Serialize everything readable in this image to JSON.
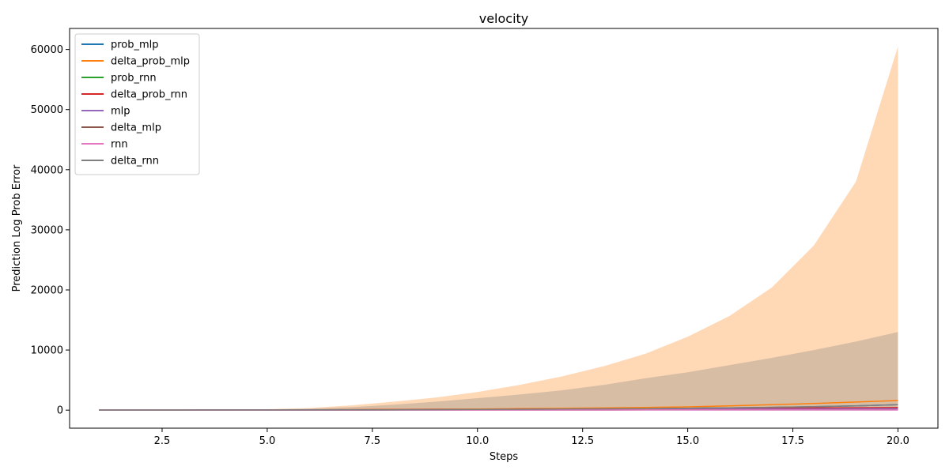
{
  "chart_data": {
    "type": "area",
    "title": "velocity",
    "xlabel": "Steps",
    "ylabel": "Prediction Log Prob Error",
    "xlim": [
      0.3,
      20.95
    ],
    "ylim": [
      -3000,
      63500
    ],
    "x_ticks": [
      2.5,
      5.0,
      7.5,
      10.0,
      12.5,
      15.0,
      17.5,
      20.0
    ],
    "x_tick_labels": [
      "2.5",
      "5.0",
      "7.5",
      "10.0",
      "12.5",
      "15.0",
      "17.5",
      "20.0"
    ],
    "y_ticks": [
      0,
      10000,
      20000,
      30000,
      40000,
      50000,
      60000
    ],
    "y_tick_labels": [
      "0",
      "10000",
      "20000",
      "30000",
      "40000",
      "50000",
      "60000"
    ],
    "grid": false,
    "legend_position": "top-left",
    "x": [
      1,
      2,
      3,
      4,
      5,
      6,
      7,
      8,
      9,
      10,
      11,
      12,
      13,
      14,
      15,
      16,
      17,
      18,
      19,
      20
    ],
    "series": [
      {
        "name": "prob_mlp",
        "color": "#1f77b4",
        "values": [
          5,
          8,
          12,
          18,
          25,
          35,
          48,
          65,
          85,
          110,
          140,
          175,
          215,
          265,
          320,
          390,
          470,
          570,
          700,
          900
        ]
      },
      {
        "name": "delta_prob_mlp",
        "color": "#ff7f0e",
        "values": [
          5,
          10,
          15,
          22,
          32,
          50,
          80,
          110,
          150,
          200,
          250,
          300,
          370,
          450,
          550,
          700,
          900,
          1100,
          1350,
          1600
        ],
        "band_upper": [
          80,
          90,
          100,
          120,
          150,
          350,
          800,
          1400,
          2100,
          3000,
          4200,
          5600,
          7300,
          9400,
          12200,
          15700,
          20400,
          27400,
          38000,
          60500
        ]
      },
      {
        "name": "prob_rnn",
        "color": "#2ca02c",
        "values": [
          5,
          8,
          12,
          16,
          22,
          30,
          40,
          50,
          60,
          70,
          80,
          90,
          100,
          110,
          120,
          130,
          140,
          150,
          160,
          170
        ]
      },
      {
        "name": "delta_prob_rnn",
        "color": "#d62728",
        "values": [
          5,
          10,
          15,
          20,
          30,
          50,
          70,
          90,
          110,
          130,
          160,
          190,
          220,
          250,
          280,
          310,
          340,
          370,
          400,
          430
        ]
      },
      {
        "name": "mlp",
        "color": "#9467bd",
        "values": [
          5,
          8,
          12,
          18,
          25,
          33,
          42,
          52,
          63,
          75,
          88,
          102,
          117,
          133,
          150,
          168,
          187,
          207,
          228,
          250
        ]
      },
      {
        "name": "delta_mlp",
        "color": "#8c564b",
        "values": [
          5,
          6,
          8,
          10,
          12,
          14,
          16,
          18,
          20,
          22,
          24,
          26,
          28,
          30,
          32,
          34,
          36,
          38,
          40,
          42
        ]
      },
      {
        "name": "rnn",
        "color": "#e377c2",
        "values": [
          5,
          6,
          8,
          10,
          12,
          14,
          16,
          18,
          20,
          22,
          24,
          26,
          28,
          30,
          32,
          34,
          36,
          38,
          40,
          42
        ]
      },
      {
        "name": "delta_rnn",
        "color": "#7f7f7f",
        "values": [
          5,
          8,
          12,
          18,
          25,
          35,
          48,
          65,
          85,
          110,
          140,
          175,
          215,
          265,
          320,
          390,
          470,
          570,
          700,
          900
        ],
        "band_upper": [
          60,
          70,
          80,
          100,
          130,
          250,
          500,
          900,
          1400,
          2000,
          2600,
          3300,
          4200,
          5300,
          6300,
          7500,
          8700,
          10000,
          11400,
          13000
        ]
      }
    ]
  }
}
